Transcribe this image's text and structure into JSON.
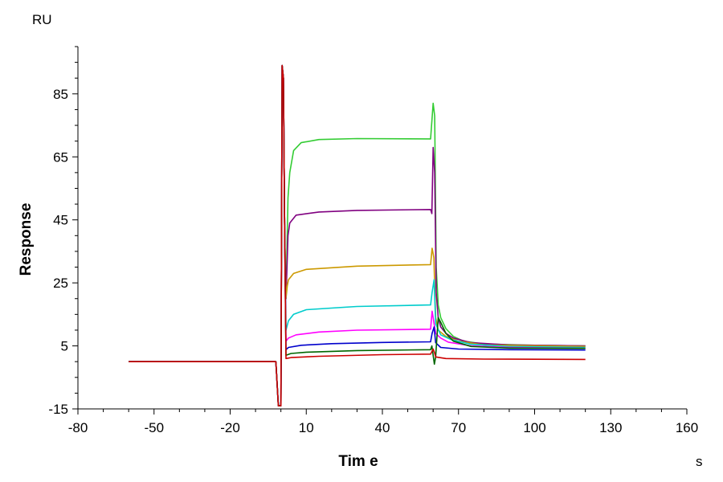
{
  "chart_data": {
    "type": "line",
    "title": "",
    "xlabel": "Tim e",
    "ylabel": "Response",
    "x_unit": "s",
    "y_unit": "RU",
    "xlim": [
      -80,
      160
    ],
    "ylim": [
      -15,
      100
    ],
    "x_ticks": [
      -80,
      -50,
      -20,
      10,
      40,
      70,
      100,
      130,
      160
    ],
    "y_ticks": [
      -15,
      5,
      25,
      45,
      65,
      85
    ],
    "x_tick_labels": [
      "-80",
      "-50",
      "-20",
      "10",
      "40",
      "70",
      "100",
      "130",
      "160"
    ],
    "y_tick_labels": [
      "-15",
      "5",
      "25",
      "45",
      "65",
      "85"
    ],
    "grid": false,
    "legend": "none",
    "series": [
      {
        "color": "#33cc33",
        "points": [
          [
            -60,
            0
          ],
          [
            -30,
            0
          ],
          [
            -2,
            0
          ],
          [
            -1,
            -14
          ],
          [
            0,
            -14
          ],
          [
            0.5,
            94
          ],
          [
            1,
            90
          ],
          [
            1.5,
            40
          ],
          [
            2,
            20
          ],
          [
            2.8,
            52
          ],
          [
            3.5,
            60
          ],
          [
            5,
            67
          ],
          [
            8,
            69.5
          ],
          [
            15,
            70.5
          ],
          [
            30,
            70.8
          ],
          [
            59,
            70.7
          ],
          [
            60,
            82
          ],
          [
            60.6,
            78
          ],
          [
            61.2,
            30
          ],
          [
            62,
            18
          ],
          [
            63,
            14
          ],
          [
            65,
            10.5
          ],
          [
            68,
            8
          ],
          [
            72,
            6.5
          ],
          [
            80,
            5.6
          ],
          [
            100,
            5.2
          ],
          [
            120,
            5.0
          ]
        ]
      },
      {
        "color": "#800080",
        "points": [
          [
            -60,
            0
          ],
          [
            -30,
            0
          ],
          [
            -2,
            0
          ],
          [
            -1,
            -14
          ],
          [
            0,
            -14
          ],
          [
            0.5,
            94
          ],
          [
            1,
            90
          ],
          [
            1.5,
            40
          ],
          [
            2,
            20
          ],
          [
            2.8,
            40
          ],
          [
            3.5,
            44
          ],
          [
            6,
            46.5
          ],
          [
            15,
            47.5
          ],
          [
            30,
            48
          ],
          [
            59,
            48.3
          ],
          [
            59.5,
            47
          ],
          [
            60,
            68
          ],
          [
            60.6,
            60
          ],
          [
            61.2,
            22
          ],
          [
            62,
            14
          ],
          [
            63,
            11
          ],
          [
            65,
            9
          ],
          [
            68,
            7.5
          ],
          [
            75,
            6
          ],
          [
            90,
            5.3
          ],
          [
            120,
            5.0
          ]
        ]
      },
      {
        "color": "#cc9900",
        "points": [
          [
            -60,
            0
          ],
          [
            -30,
            0
          ],
          [
            -2,
            0
          ],
          [
            -1,
            -14
          ],
          [
            0,
            -14
          ],
          [
            0.5,
            94
          ],
          [
            1,
            90
          ],
          [
            1.5,
            40
          ],
          [
            2,
            20
          ],
          [
            2.5,
            24
          ],
          [
            3,
            26
          ],
          [
            5,
            28
          ],
          [
            10,
            29.3
          ],
          [
            30,
            30.3
          ],
          [
            59,
            30.8
          ],
          [
            59.6,
            36
          ],
          [
            60.3,
            33
          ],
          [
            61,
            14
          ],
          [
            62,
            10
          ],
          [
            65,
            8
          ],
          [
            70,
            6.5
          ],
          [
            80,
            5.3
          ],
          [
            120,
            4.8
          ]
        ]
      },
      {
        "color": "#00cccc",
        "points": [
          [
            -60,
            0
          ],
          [
            -30,
            0
          ],
          [
            -2,
            0
          ],
          [
            -1,
            -14
          ],
          [
            0,
            -14
          ],
          [
            0.5,
            94
          ],
          [
            1,
            90
          ],
          [
            1.5,
            40
          ],
          [
            2,
            10
          ],
          [
            3,
            13
          ],
          [
            5,
            15
          ],
          [
            10,
            16.5
          ],
          [
            30,
            17.5
          ],
          [
            59,
            18
          ],
          [
            59.6,
            22
          ],
          [
            60.4,
            26
          ],
          [
            61,
            12
          ],
          [
            63,
            8.5
          ],
          [
            67,
            7
          ],
          [
            75,
            5.5
          ],
          [
            90,
            4.8
          ],
          [
            120,
            4.5
          ]
        ]
      },
      {
        "color": "#ff00ff",
        "points": [
          [
            -60,
            0
          ],
          [
            -30,
            0
          ],
          [
            -2,
            0
          ],
          [
            -1,
            -14
          ],
          [
            0,
            -14
          ],
          [
            0.5,
            94
          ],
          [
            1,
            90
          ],
          [
            1.5,
            40
          ],
          [
            2,
            6.5
          ],
          [
            3,
            7.5
          ],
          [
            6,
            8.5
          ],
          [
            15,
            9.4
          ],
          [
            30,
            10
          ],
          [
            59,
            10.3
          ],
          [
            59.6,
            16
          ],
          [
            60.4,
            12
          ],
          [
            61,
            9
          ],
          [
            63,
            7.5
          ],
          [
            66,
            6.2
          ],
          [
            75,
            5
          ],
          [
            90,
            4.5
          ],
          [
            120,
            4.2
          ]
        ]
      },
      {
        "color": "#0000cc",
        "points": [
          [
            -60,
            0
          ],
          [
            -30,
            0
          ],
          [
            -2,
            0
          ],
          [
            -1,
            -14
          ],
          [
            0,
            -14
          ],
          [
            0.5,
            94
          ],
          [
            1,
            90
          ],
          [
            1.5,
            40
          ],
          [
            2,
            3.8
          ],
          [
            3,
            4.5
          ],
          [
            8,
            5.2
          ],
          [
            20,
            5.7
          ],
          [
            40,
            6.1
          ],
          [
            59,
            6.3
          ],
          [
            59.6,
            9
          ],
          [
            60.4,
            11
          ],
          [
            61,
            6
          ],
          [
            63,
            4.5
          ],
          [
            70,
            4
          ],
          [
            90,
            3.8
          ],
          [
            120,
            3.7
          ]
        ]
      },
      {
        "color": "#006600",
        "points": [
          [
            -60,
            0
          ],
          [
            -30,
            0
          ],
          [
            -2,
            0
          ],
          [
            -1,
            -14
          ],
          [
            0,
            -14
          ],
          [
            0.5,
            94
          ],
          [
            1,
            90
          ],
          [
            1.5,
            40
          ],
          [
            2,
            2
          ],
          [
            4,
            2.6
          ],
          [
            10,
            3
          ],
          [
            30,
            3.5
          ],
          [
            59,
            3.8
          ],
          [
            59.5,
            5
          ],
          [
            60,
            2
          ],
          [
            60.5,
            -0.8
          ],
          [
            61,
            1.5
          ],
          [
            62,
            14
          ],
          [
            63,
            12.5
          ],
          [
            65,
            9
          ],
          [
            68,
            6.5
          ],
          [
            75,
            4.8
          ],
          [
            90,
            4.3
          ],
          [
            120,
            4.2
          ]
        ]
      },
      {
        "color": "#cc0000",
        "points": [
          [
            -60,
            0
          ],
          [
            -30,
            0
          ],
          [
            -2,
            0
          ],
          [
            -1,
            -14
          ],
          [
            0,
            -14
          ],
          [
            0.5,
            94
          ],
          [
            1,
            90
          ],
          [
            1.5,
            40
          ],
          [
            2,
            1
          ],
          [
            4,
            1.3
          ],
          [
            15,
            1.7
          ],
          [
            40,
            2.2
          ],
          [
            59,
            2.4
          ],
          [
            60,
            4
          ],
          [
            60.5,
            3
          ],
          [
            61,
            1.5
          ],
          [
            65,
            1
          ],
          [
            80,
            0.8
          ],
          [
            120,
            0.7
          ]
        ]
      }
    ]
  }
}
